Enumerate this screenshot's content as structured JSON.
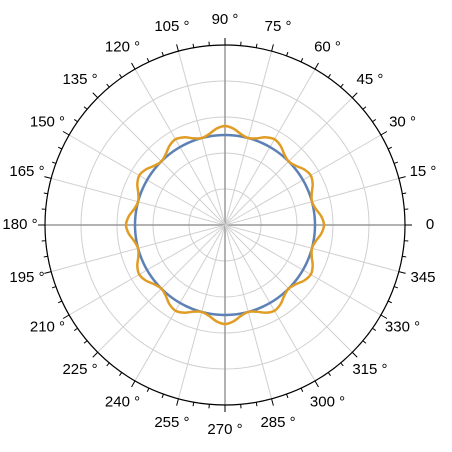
{
  "chart_data": {
    "type": "polar",
    "x": [
      0,
      5,
      10,
      15,
      20,
      25,
      30,
      35,
      40,
      45,
      50,
      55,
      60,
      65,
      70,
      75,
      80,
      85,
      90,
      95,
      100,
      105,
      110,
      115,
      120,
      125,
      130,
      135,
      140,
      145,
      150,
      155,
      160,
      165,
      170,
      175,
      180,
      185,
      190,
      195,
      200,
      205,
      210,
      215,
      220,
      225,
      230,
      235,
      240,
      245,
      250,
      255,
      260,
      265,
      270,
      275,
      280,
      285,
      290,
      295,
      300,
      305,
      310,
      315,
      320,
      325,
      330,
      335,
      340,
      345,
      350,
      355
    ],
    "series": [
      {
        "color": "#5e81b5",
        "values": [
          0.5,
          0.5,
          0.5,
          0.5,
          0.5,
          0.5,
          0.5,
          0.5,
          0.5,
          0.5,
          0.5,
          0.5,
          0.5,
          0.5,
          0.5,
          0.5,
          0.5,
          0.5,
          0.5,
          0.5,
          0.5,
          0.5,
          0.5,
          0.5,
          0.5,
          0.5,
          0.5,
          0.5,
          0.5,
          0.5,
          0.5,
          0.5,
          0.5,
          0.5,
          0.5,
          0.5,
          0.5,
          0.5,
          0.5,
          0.5,
          0.5,
          0.5,
          0.5,
          0.5,
          0.5,
          0.5,
          0.5,
          0.5,
          0.5,
          0.5,
          0.5,
          0.5,
          0.5,
          0.5,
          0.5,
          0.5,
          0.5,
          0.5,
          0.5,
          0.5,
          0.5,
          0.5,
          0.5,
          0.5,
          0.5,
          0.5,
          0.5,
          0.5,
          0.5,
          0.5,
          0.5,
          0.5
        ]
      },
      {
        "color": "#e19c24",
        "values": [
          0.55,
          0.5375,
          0.5125,
          0.5,
          0.5125,
          0.5375,
          0.55,
          0.5375,
          0.5125,
          0.5,
          0.5125,
          0.5375,
          0.55,
          0.5375,
          0.5125,
          0.5,
          0.5125,
          0.5375,
          0.55,
          0.5375,
          0.5125,
          0.5,
          0.5125,
          0.5375,
          0.55,
          0.5375,
          0.5125,
          0.5,
          0.5125,
          0.5375,
          0.55,
          0.5375,
          0.5125,
          0.5,
          0.5125,
          0.5375,
          0.55,
          0.5375,
          0.5125,
          0.5,
          0.5125,
          0.5375,
          0.55,
          0.5375,
          0.5125,
          0.5,
          0.5125,
          0.5375,
          0.55,
          0.5375,
          0.5125,
          0.5,
          0.5125,
          0.5375,
          0.55,
          0.5375,
          0.5125,
          0.5,
          0.5125,
          0.5375,
          0.55,
          0.5375,
          0.5125,
          0.5,
          0.5125,
          0.5375,
          0.55,
          0.5375,
          0.5125,
          0.5,
          0.5125,
          0.5375
        ]
      }
    ],
    "rlim": [
      0,
      1
    ],
    "rticks": [
      0.2,
      0.4,
      0.6,
      0.8,
      1
    ],
    "thetaticks": [
      0,
      {
        "value": 15,
        "label": "15 °"
      },
      {
        "value": 30,
        "label": "30 °"
      },
      {
        "value": 45,
        "label": "45 °"
      },
      {
        "value": 60,
        "label": "60 °"
      },
      {
        "value": 75,
        "label": "75 °"
      },
      {
        "value": 90,
        "label": "90 °"
      },
      {
        "value": 105,
        "label": "105 °"
      },
      {
        "value": 120,
        "label": "120 °"
      },
      {
        "value": 135,
        "label": "135 °"
      },
      {
        "value": 150,
        "label": "150 °"
      },
      {
        "value": 165,
        "label": "165 °"
      },
      {
        "value": 180,
        "label": "180 °"
      },
      {
        "value": 195,
        "label": "195 °"
      },
      {
        "value": 210,
        "label": "210 °"
      },
      {
        "value": 225,
        "label": "225 °"
      },
      {
        "value": 240,
        "label": "240 °"
      },
      {
        "value": 255,
        "label": "255 °"
      },
      {
        "value": 270,
        "label": "270 °"
      },
      {
        "value": 285,
        "label": "285 °"
      },
      {
        "value": 300,
        "label": "300 °"
      },
      {
        "value": 315,
        "label": "315 °"
      },
      {
        "value": 330,
        "label": "330 °"
      },
      345
    ],
    "grid": true
  }
}
